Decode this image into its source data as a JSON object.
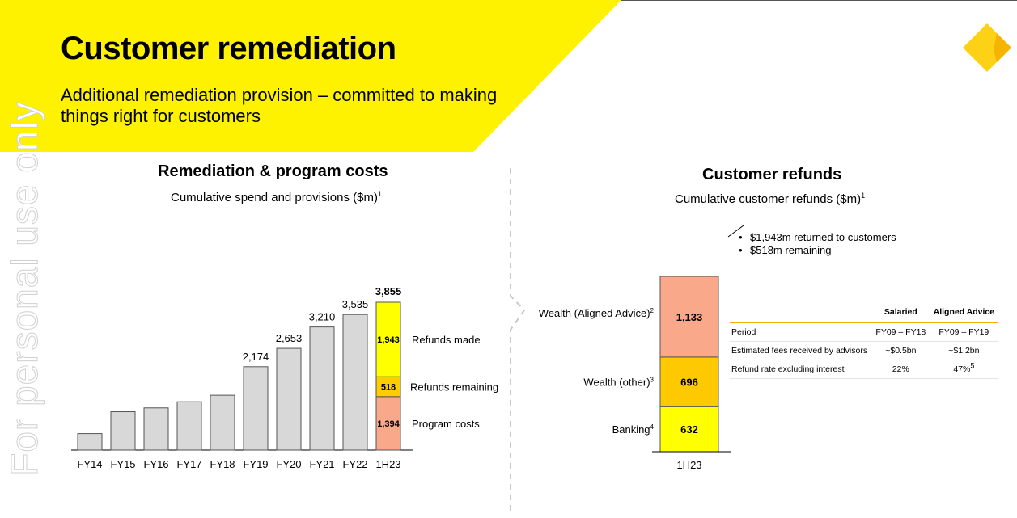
{
  "header": {
    "title": "Customer remediation",
    "subtitle": "Additional remediation provision – committed to making things right for customers"
  },
  "watermark": "For personal use only",
  "colors": {
    "banner_yellow": "#fff200",
    "bar_grey": "#d8d8d8",
    "refunds_made": "#ffff00",
    "refunds_remaining": "#ffcc00",
    "program_costs": "#f9a98a",
    "wealth_other": "#ffc900",
    "banking": "#ffff00",
    "aligned_advice": "#f9a98a"
  },
  "chart_data": [
    {
      "type": "bar",
      "title": "Remediation & program costs",
      "subtitle": "Cumulative spend and provisions ($m)",
      "subtitle_note": "1",
      "categories": [
        "FY14",
        "FY15",
        "FY16",
        "FY17",
        "FY18",
        "FY19",
        "FY20",
        "FY21",
        "FY22",
        "1H23"
      ],
      "values": [
        null,
        null,
        null,
        null,
        null,
        2174,
        2653,
        3210,
        3535,
        3855
      ],
      "value_labels": [
        "",
        "",
        "",
        "",
        "",
        "2,174",
        "2,653",
        "3,210",
        "3,535",
        "3,855"
      ],
      "estimated_values": [
        430,
        1000,
        1100,
        1260,
        1430,
        2174,
        2653,
        3210,
        3535,
        3855
      ],
      "ylim": [
        0,
        4000
      ],
      "stacked_last": [
        {
          "name": "Program costs",
          "value": 1394,
          "label": "1,394"
        },
        {
          "name": "Refunds remaining",
          "value": 518,
          "label": "518"
        },
        {
          "name": "Refunds made",
          "value": 1943,
          "label": "1,943"
        }
      ]
    },
    {
      "type": "bar",
      "title": "Customer refunds",
      "subtitle": "Cumulative customer refunds ($m)",
      "subtitle_note": "1",
      "categories": [
        "1H23"
      ],
      "series": [
        {
          "name": "Banking",
          "note": "4",
          "value": 632,
          "label": "632"
        },
        {
          "name": "Wealth (other)",
          "note": "3",
          "value": 696,
          "label": "696"
        },
        {
          "name": "Wealth (Aligned Advice)",
          "note": "2",
          "value": 1133,
          "label": "1,133"
        }
      ]
    }
  ],
  "callout": {
    "items": [
      "$1,943m returned to customers",
      "$518m remaining"
    ]
  },
  "advice_table": {
    "headers": [
      "",
      "Salaried",
      "Aligned Advice"
    ],
    "rows": [
      {
        "label": "Period",
        "salaried": "FY09 – FY18",
        "aligned": "FY09 – FY19",
        "aligned_note": ""
      },
      {
        "label": "Estimated fees received by advisors",
        "salaried": "~$0.5bn",
        "aligned": "~$1.2bn",
        "aligned_note": ""
      },
      {
        "label": "Refund rate excluding interest",
        "salaried": "22%",
        "aligned": "47%",
        "aligned_note": "5"
      }
    ]
  }
}
